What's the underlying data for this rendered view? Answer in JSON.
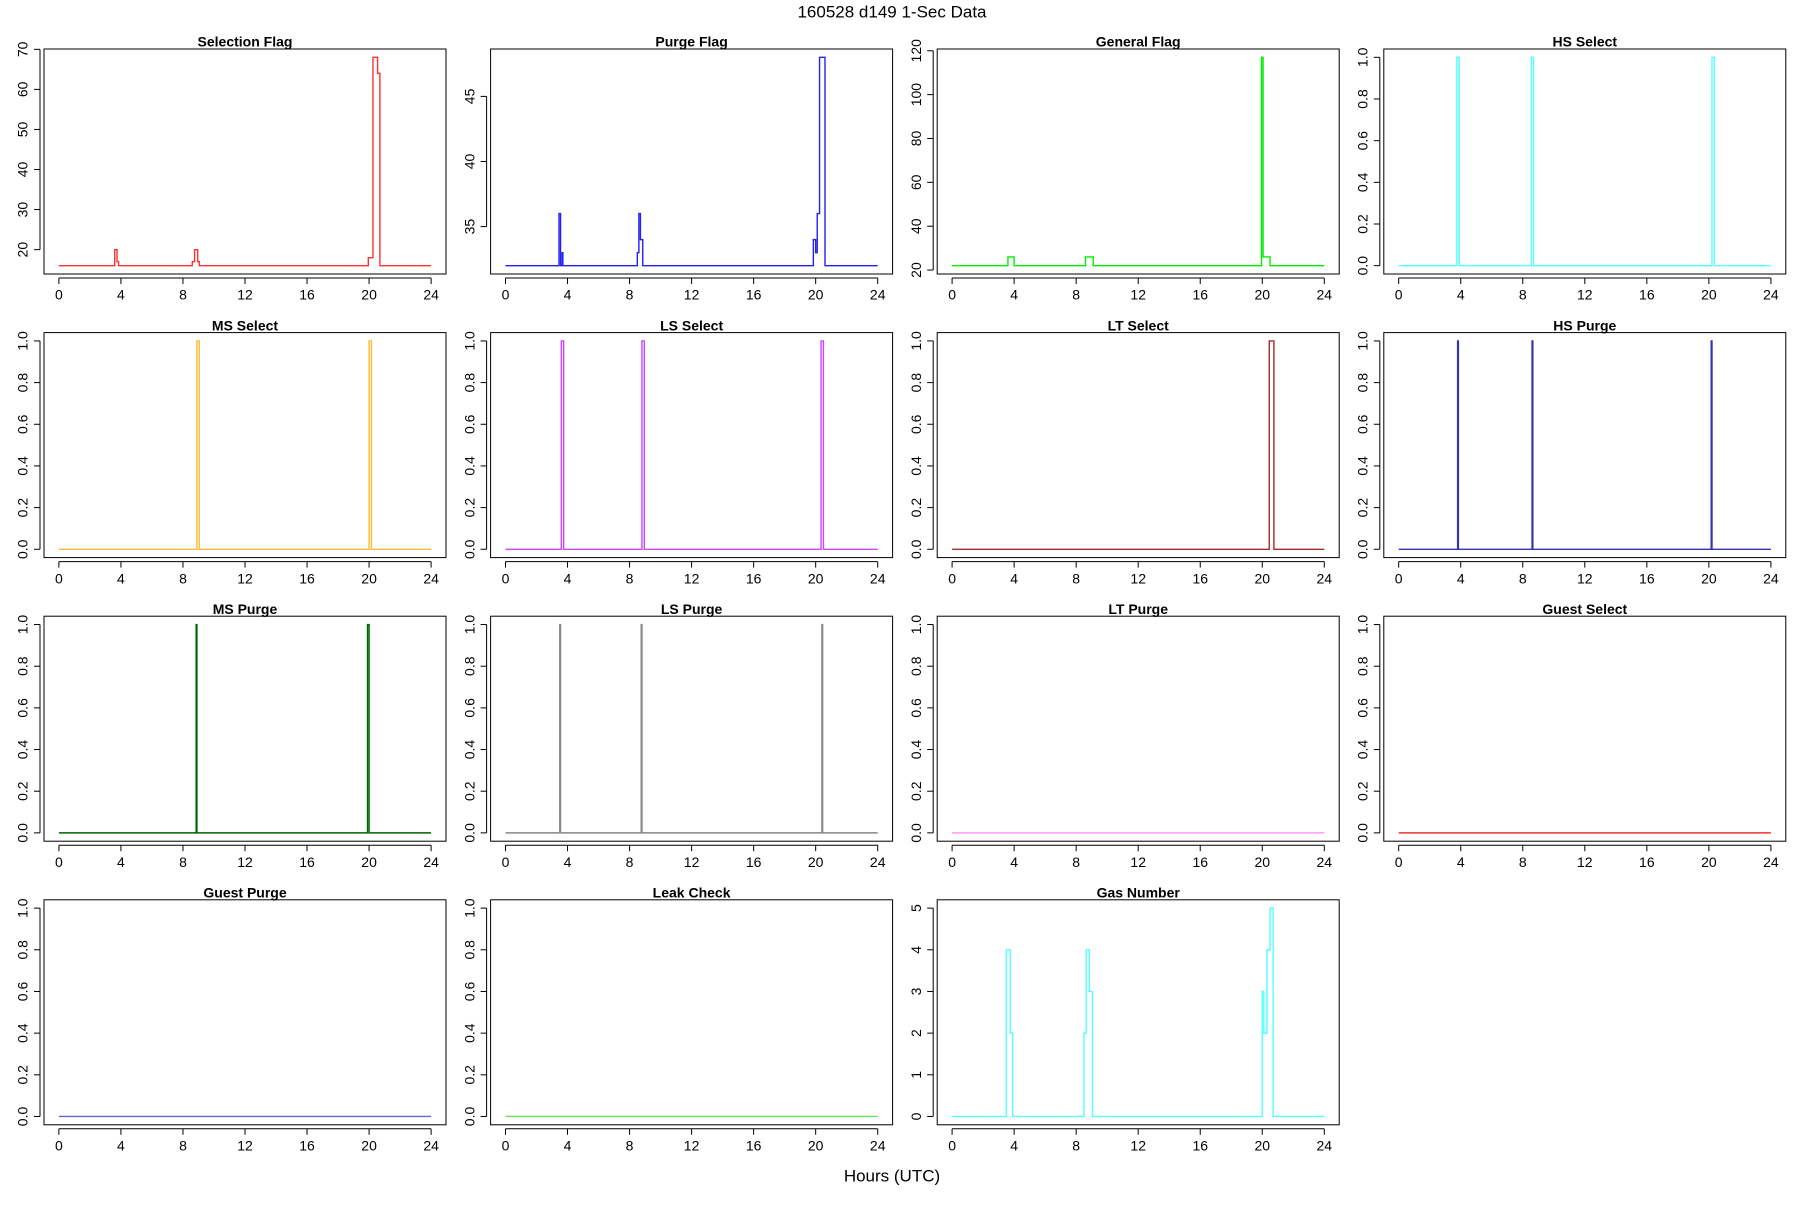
{
  "title": "160528   d149   1-Sec Data",
  "xlabel": "Hours (UTC)",
  "chart_data": [
    {
      "type": "line",
      "title": "Selection Flag",
      "xlim": [
        -0.96,
        24.96
      ],
      "xticks": [
        0,
        4,
        8,
        12,
        16,
        20,
        24
      ],
      "ylim": [
        13.92,
        70.08
      ],
      "yticks": [
        20,
        30,
        40,
        50,
        60,
        70
      ],
      "x": [
        0,
        3.6,
        3.6,
        3.75,
        3.75,
        3.85,
        3.85,
        8.6,
        8.6,
        8.75,
        8.75,
        8.95,
        8.95,
        9.05,
        9.05,
        19.95,
        19.95,
        20.25,
        20.25,
        20.55,
        20.55,
        20.7,
        20.7,
        24
      ],
      "series": [
        {
          "color": "#ff3333",
          "values": [
            16,
            16,
            20,
            20,
            17,
            17,
            16,
            16,
            17,
            17,
            20,
            20,
            17,
            17,
            16,
            16,
            18,
            18,
            68,
            68,
            64,
            64,
            16,
            16
          ]
        }
      ]
    },
    {
      "type": "line",
      "title": "Purge Flag",
      "xlim": [
        -0.96,
        24.96
      ],
      "xticks": [
        0,
        4,
        8,
        12,
        16,
        20,
        24
      ],
      "ylim": [
        31.36,
        48.64
      ],
      "yticks": [
        35,
        40,
        45
      ],
      "x": [
        0,
        3.45,
        3.45,
        3.55,
        3.55,
        3.65,
        3.65,
        3.7,
        3.7,
        8.5,
        8.5,
        8.6,
        8.6,
        8.7,
        8.7,
        8.85,
        8.85,
        19.85,
        19.85,
        20,
        20,
        20.1,
        20.1,
        20.25,
        20.25,
        20.6,
        20.6,
        24
      ],
      "series": [
        {
          "color": "#2222ee",
          "values": [
            32,
            32,
            36,
            36,
            32,
            32,
            33,
            33,
            32,
            32,
            33,
            33,
            36,
            36,
            34,
            34,
            32,
            32,
            34,
            34,
            33,
            33,
            36,
            36,
            48,
            48,
            32,
            32
          ]
        }
      ]
    },
    {
      "type": "line",
      "title": "General Flag",
      "xlim": [
        -0.96,
        24.96
      ],
      "xticks": [
        0,
        4,
        8,
        12,
        16,
        20,
        24
      ],
      "ylim": [
        18.2,
        120.8
      ],
      "yticks": [
        20,
        40,
        60,
        80,
        100,
        120
      ],
      "x": [
        0,
        3.6,
        3.6,
        4.0,
        4.0,
        8.6,
        8.6,
        9.1,
        9.1,
        19.95,
        19.95,
        20.05,
        20.05,
        20.5,
        20.5,
        24
      ],
      "series": [
        {
          "color": "#00ee00",
          "values": [
            22,
            22,
            26,
            26,
            22,
            22,
            26,
            26,
            22,
            22,
            117,
            117,
            26,
            26,
            22,
            22
          ]
        }
      ]
    },
    {
      "type": "line",
      "title": "HS Select",
      "xlim": [
        -0.96,
        24.96
      ],
      "xticks": [
        0,
        4,
        8,
        12,
        16,
        20,
        24
      ],
      "ylim": [
        -0.04,
        1.04
      ],
      "yticks": [
        {
          "value": 0,
          "label": "0.0"
        },
        0.2,
        0.4,
        0.6,
        0.8,
        {
          "value": 1,
          "label": "1.0"
        }
      ],
      "x": [
        0,
        3.75,
        3.75,
        3.9,
        3.9,
        8.55,
        8.55,
        8.7,
        8.7,
        20.2,
        20.2,
        20.35,
        20.35,
        24
      ],
      "series": [
        {
          "color": "#55ffff",
          "values": [
            0,
            0,
            1,
            1,
            0,
            0,
            1,
            1,
            0,
            0,
            1,
            1,
            0,
            0
          ]
        }
      ]
    },
    {
      "type": "line",
      "title": "MS Select",
      "xlim": [
        -0.96,
        24.96
      ],
      "xticks": [
        0,
        4,
        8,
        12,
        16,
        20,
        24
      ],
      "ylim": [
        -0.04,
        1.04
      ],
      "yticks": [
        {
          "value": 0,
          "label": "0.0"
        },
        0.2,
        0.4,
        0.6,
        0.8,
        {
          "value": 1,
          "label": "1.0"
        }
      ],
      "x": [
        0,
        8.9,
        8.9,
        9.05,
        9.05,
        20.0,
        20.0,
        20.15,
        20.15,
        24
      ],
      "series": [
        {
          "color": "#ffbb33",
          "values": [
            0,
            0,
            1,
            1,
            0,
            0,
            1,
            1,
            0,
            0
          ]
        }
      ]
    },
    {
      "type": "line",
      "title": "LS Select",
      "xlim": [
        -0.96,
        24.96
      ],
      "xticks": [
        0,
        4,
        8,
        12,
        16,
        20,
        24
      ],
      "ylim": [
        -0.04,
        1.04
      ],
      "yticks": [
        {
          "value": 0,
          "label": "0.0"
        },
        0.2,
        0.4,
        0.6,
        0.8,
        {
          "value": 1,
          "label": "1.0"
        }
      ],
      "x": [
        0,
        3.6,
        3.6,
        3.75,
        3.75,
        8.8,
        8.8,
        8.95,
        8.95,
        20.35,
        20.35,
        20.5,
        20.5,
        24
      ],
      "series": [
        {
          "color": "#cc44ff",
          "values": [
            0,
            0,
            1,
            1,
            0,
            0,
            1,
            1,
            0,
            0,
            1,
            1,
            0,
            0
          ]
        }
      ]
    },
    {
      "type": "line",
      "title": "LT Select",
      "xlim": [
        -0.96,
        24.96
      ],
      "xticks": [
        0,
        4,
        8,
        12,
        16,
        20,
        24
      ],
      "ylim": [
        -0.04,
        1.04
      ],
      "yticks": [
        {
          "value": 0,
          "label": "0.0"
        },
        0.2,
        0.4,
        0.6,
        0.8,
        {
          "value": 1,
          "label": "1.0"
        }
      ],
      "x": [
        0,
        20.45,
        20.45,
        20.75,
        20.75,
        24
      ],
      "series": [
        {
          "color": "#a52a2a",
          "values": [
            0,
            0,
            1,
            1,
            0,
            0
          ]
        }
      ]
    },
    {
      "type": "line",
      "title": "HS Purge",
      "xlim": [
        -0.96,
        24.96
      ],
      "xticks": [
        0,
        4,
        8,
        12,
        16,
        20,
        24
      ],
      "ylim": [
        -0.04,
        1.04
      ],
      "yticks": [
        {
          "value": 0,
          "label": "0.0"
        },
        0.2,
        0.4,
        0.6,
        0.8,
        {
          "value": 1,
          "label": "1.0"
        }
      ],
      "x": [
        0,
        3.8,
        3.8,
        3.85,
        3.85,
        8.6,
        8.6,
        8.65,
        8.65,
        20.15,
        20.15,
        20.2,
        20.2,
        24
      ],
      "series": [
        {
          "color": "#3333aa",
          "values": [
            0,
            0,
            1,
            1,
            0,
            0,
            1,
            1,
            0,
            0,
            1,
            1,
            0,
            0
          ]
        }
      ]
    },
    {
      "type": "line",
      "title": "MS Purge",
      "xlim": [
        -0.96,
        24.96
      ],
      "xticks": [
        0,
        4,
        8,
        12,
        16,
        20,
        24
      ],
      "ylim": [
        -0.04,
        1.04
      ],
      "yticks": [
        {
          "value": 0,
          "label": "0.0"
        },
        0.2,
        0.4,
        0.6,
        0.8,
        {
          "value": 1,
          "label": "1.0"
        }
      ],
      "x": [
        0,
        8.85,
        8.85,
        8.9,
        8.9,
        19.9,
        19.9,
        20.0,
        20.0,
        24
      ],
      "series": [
        {
          "color": "#006400",
          "values": [
            0,
            0,
            1,
            1,
            0,
            0,
            1,
            1,
            0,
            0
          ]
        }
      ]
    },
    {
      "type": "line",
      "title": "LS Purge",
      "xlim": [
        -0.96,
        24.96
      ],
      "xticks": [
        0,
        4,
        8,
        12,
        16,
        20,
        24
      ],
      "ylim": [
        -0.04,
        1.04
      ],
      "yticks": [
        {
          "value": 0,
          "label": "0.0"
        },
        0.2,
        0.4,
        0.6,
        0.8,
        {
          "value": 1,
          "label": "1.0"
        }
      ],
      "x": [
        0,
        3.5,
        3.5,
        3.55,
        3.55,
        8.75,
        8.75,
        8.8,
        8.8,
        20.4,
        20.4,
        20.45,
        20.45,
        24
      ],
      "series": [
        {
          "color": "#888888",
          "values": [
            0,
            0,
            1,
            1,
            0,
            0,
            1,
            1,
            0,
            0,
            1,
            1,
            0,
            0
          ]
        }
      ]
    },
    {
      "type": "line",
      "title": "LT Purge",
      "xlim": [
        -0.96,
        24.96
      ],
      "xticks": [
        0,
        4,
        8,
        12,
        16,
        20,
        24
      ],
      "ylim": [
        -0.04,
        1.04
      ],
      "yticks": [
        {
          "value": 0,
          "label": "0.0"
        },
        0.2,
        0.4,
        0.6,
        0.8,
        {
          "value": 1,
          "label": "1.0"
        }
      ],
      "x": [
        0,
        24
      ],
      "series": [
        {
          "color": "#ff99ff",
          "values": [
            0,
            0
          ]
        }
      ]
    },
    {
      "type": "line",
      "title": "Guest Select",
      "xlim": [
        -0.96,
        24.96
      ],
      "xticks": [
        0,
        4,
        8,
        12,
        16,
        20,
        24
      ],
      "ylim": [
        -0.04,
        1.04
      ],
      "yticks": [
        {
          "value": 0,
          "label": "0.0"
        },
        0.2,
        0.4,
        0.6,
        0.8,
        {
          "value": 1,
          "label": "1.0"
        }
      ],
      "x": [
        0,
        24
      ],
      "series": [
        {
          "color": "#ee3333",
          "values": [
            0,
            0
          ]
        }
      ]
    },
    {
      "type": "line",
      "title": "Guest Purge",
      "xlim": [
        -0.96,
        24.96
      ],
      "xticks": [
        0,
        4,
        8,
        12,
        16,
        20,
        24
      ],
      "ylim": [
        -0.04,
        1.04
      ],
      "yticks": [
        {
          "value": 0,
          "label": "0.0"
        },
        0.2,
        0.4,
        0.6,
        0.8,
        {
          "value": 1,
          "label": "1.0"
        }
      ],
      "x": [
        0,
        24
      ],
      "series": [
        {
          "color": "#6666cc",
          "values": [
            0,
            0
          ]
        }
      ]
    },
    {
      "type": "line",
      "title": "Leak Check",
      "xlim": [
        -0.96,
        24.96
      ],
      "xticks": [
        0,
        4,
        8,
        12,
        16,
        20,
        24
      ],
      "ylim": [
        -0.04,
        1.04
      ],
      "yticks": [
        {
          "value": 0,
          "label": "0.0"
        },
        0.2,
        0.4,
        0.6,
        0.8,
        {
          "value": 1,
          "label": "1.0"
        }
      ],
      "x": [
        0,
        24
      ],
      "series": [
        {
          "color": "#66dd66",
          "values": [
            0,
            0
          ]
        }
      ]
    },
    {
      "type": "line",
      "title": "Gas Number",
      "xlim": [
        -0.96,
        24.96
      ],
      "xticks": [
        0,
        4,
        8,
        12,
        16,
        20,
        24
      ],
      "ylim": [
        -0.2,
        5.2
      ],
      "yticks": [
        0,
        1,
        2,
        3,
        4,
        5
      ],
      "x": [
        0,
        3.5,
        3.5,
        3.75,
        3.75,
        3.9,
        3.9,
        8.5,
        8.5,
        8.65,
        8.65,
        8.85,
        8.85,
        9.05,
        9.05,
        20.0,
        20.0,
        20.1,
        20.1,
        20.3,
        20.3,
        20.5,
        20.5,
        20.7,
        20.7,
        24
      ],
      "series": [
        {
          "color": "#55ffff",
          "values": [
            0,
            0,
            4,
            4,
            2,
            2,
            0,
            0,
            2,
            2,
            4,
            4,
            3,
            3,
            0,
            0,
            3,
            3,
            2,
            2,
            4,
            4,
            5,
            5,
            0,
            0
          ]
        }
      ]
    }
  ]
}
